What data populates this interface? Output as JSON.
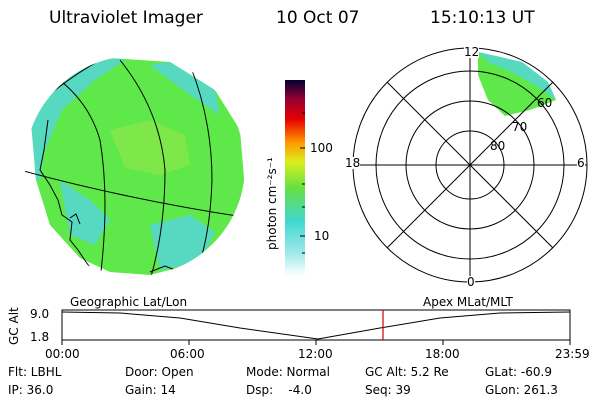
{
  "header": {
    "instrument": "Ultraviolet Imager",
    "date": "10 Oct 07",
    "time": "15:10:13 UT"
  },
  "colorbar": {
    "label": "photon cm⁻²s⁻¹",
    "ticks": [
      "100",
      "10"
    ],
    "scale": "log",
    "colors": [
      "#ffffff",
      "#4ce6e6",
      "#66e633",
      "#ffff00",
      "#ff9900",
      "#ff0000",
      "#990033",
      "#000033"
    ]
  },
  "polar": {
    "mlt_labels": [
      "12",
      "18",
      "6",
      "0"
    ],
    "lat_labels": [
      "60",
      "70",
      "80"
    ]
  },
  "timeline": {
    "left_caption": "Geographic Lat/Lon",
    "right_caption": "Apex MLat/MLT",
    "axis_label": "GC Alt",
    "y_ticks": [
      "9.0",
      "1.8"
    ],
    "x_ticks": [
      "00:00",
      "06:00",
      "12:00",
      "18:00",
      "23:59"
    ],
    "current_time_fraction": 0.6322
  },
  "info": {
    "filter": "Flt: LBHL",
    "door": "Door: Open",
    "mode": "Mode: Normal",
    "gc_alt": "GC Alt: 5.2 Re",
    "glat": "GLat: -60.9",
    "ip": "IP: 36.0",
    "gain": "Gain: 14",
    "dsp": "Dsp:    -4.0",
    "seq": "Seq: 39",
    "glon": "GLon: 261.3"
  }
}
